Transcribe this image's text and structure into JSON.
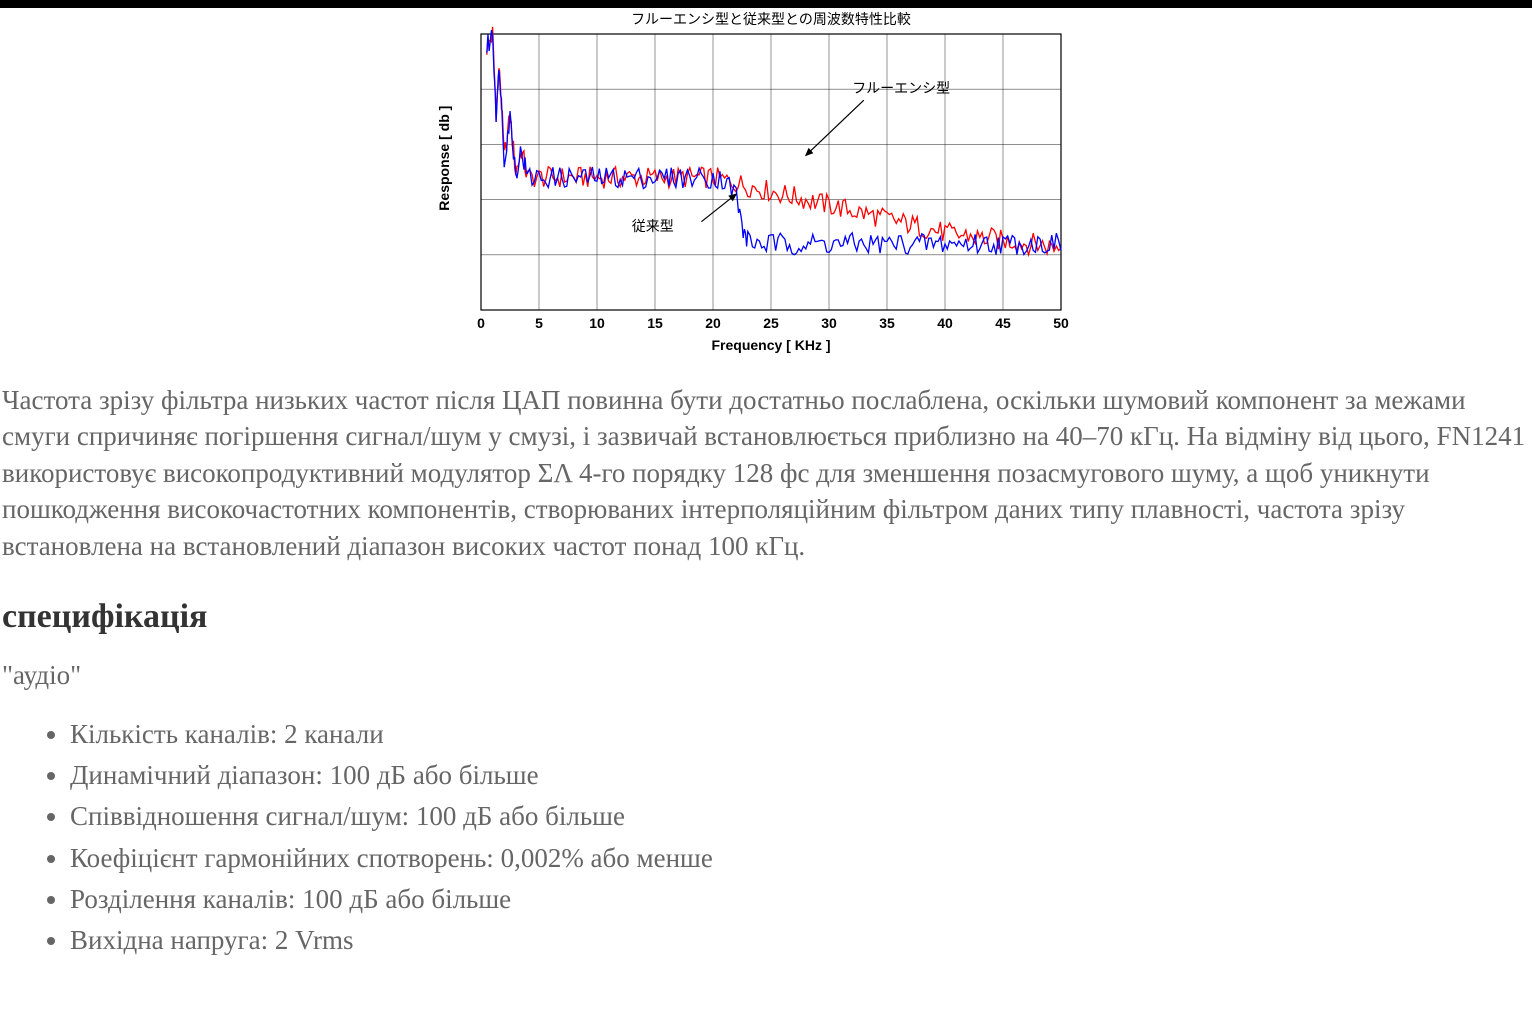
{
  "chart": {
    "type": "line",
    "title": "フルーエンシ型と従来型との周波数特性比較",
    "title_fontsize": 14,
    "xlabel": "Frequency [ KHz ]",
    "ylabel": "Response [ db ]",
    "label_fontsize": 14,
    "label_fontweight": "bold",
    "xlim": [
      0,
      50
    ],
    "ylim": [
      -100,
      0
    ],
    "xtick_step": 5,
    "xticks": [
      0,
      5,
      10,
      15,
      20,
      25,
      30,
      35,
      40,
      45,
      50
    ],
    "background_color": "#ffffff",
    "grid_color": "#000000",
    "grid_width": 0.6,
    "axis_color": "#000000",
    "axis_width": 1.2,
    "series": [
      {
        "name": "フルーエンシ型",
        "color": "#ff0000",
        "line_width": 1.3,
        "annotation_xy": [
          30,
          -38
        ],
        "arrow_from": [
          33,
          -24
        ],
        "arrow_to": [
          28,
          -44
        ],
        "data": [
          [
            0.5,
            -5
          ],
          [
            1,
            0
          ],
          [
            1.3,
            -28
          ],
          [
            1.6,
            -12
          ],
          [
            2,
            -45
          ],
          [
            2.5,
            -30
          ],
          [
            3,
            -50
          ],
          [
            3.5,
            -42
          ],
          [
            4,
            -52
          ],
          [
            5,
            -52
          ],
          [
            6,
            -52
          ],
          [
            7,
            -52
          ],
          [
            8,
            -52
          ],
          [
            9,
            -52
          ],
          [
            10,
            -52
          ],
          [
            11,
            -52
          ],
          [
            12,
            -52
          ],
          [
            13,
            -52
          ],
          [
            14,
            -52
          ],
          [
            15,
            -52
          ],
          [
            16,
            -52
          ],
          [
            17,
            -52
          ],
          [
            18,
            -52
          ],
          [
            19,
            -52
          ],
          [
            20,
            -52
          ],
          [
            21,
            -53
          ],
          [
            22,
            -54
          ],
          [
            23,
            -55
          ],
          [
            24,
            -56
          ],
          [
            25,
            -57
          ],
          [
            26,
            -58
          ],
          [
            27,
            -59
          ],
          [
            28,
            -60
          ],
          [
            29,
            -61
          ],
          [
            30,
            -62
          ],
          [
            31,
            -63
          ],
          [
            32,
            -64
          ],
          [
            33,
            -65
          ],
          [
            34,
            -66
          ],
          [
            35,
            -67
          ],
          [
            36,
            -68
          ],
          [
            37,
            -69
          ],
          [
            38,
            -70
          ],
          [
            39,
            -71
          ],
          [
            40,
            -72
          ],
          [
            41,
            -73
          ],
          [
            42,
            -73
          ],
          [
            43,
            -74
          ],
          [
            44,
            -74
          ],
          [
            45,
            -75
          ],
          [
            46,
            -75
          ],
          [
            47,
            -76
          ],
          [
            48,
            -76
          ],
          [
            49,
            -77
          ],
          [
            50,
            -77
          ]
        ]
      },
      {
        "name": "従来型",
        "color": "#0000ff",
        "line_width": 1.3,
        "annotation_xy": [
          16,
          -66
        ],
        "arrow_from": [
          19,
          -68
        ],
        "arrow_to": [
          22,
          -58
        ],
        "data": [
          [
            0.5,
            -5
          ],
          [
            1,
            0
          ],
          [
            1.3,
            -28
          ],
          [
            1.6,
            -12
          ],
          [
            2,
            -45
          ],
          [
            2.5,
            -30
          ],
          [
            3,
            -50
          ],
          [
            3.5,
            -42
          ],
          [
            4,
            -52
          ],
          [
            5,
            -52
          ],
          [
            6,
            -52
          ],
          [
            7,
            -52
          ],
          [
            8,
            -52
          ],
          [
            9,
            -52
          ],
          [
            10,
            -52
          ],
          [
            11,
            -52
          ],
          [
            12,
            -52
          ],
          [
            13,
            -52
          ],
          [
            14,
            -52
          ],
          [
            15,
            -52
          ],
          [
            16,
            -52
          ],
          [
            17,
            -52
          ],
          [
            18,
            -52
          ],
          [
            19,
            -52
          ],
          [
            20,
            -52
          ],
          [
            21,
            -53
          ],
          [
            22,
            -58
          ],
          [
            22.5,
            -70
          ],
          [
            23,
            -75
          ],
          [
            24,
            -76
          ],
          [
            25,
            -76
          ],
          [
            26,
            -76
          ],
          [
            27,
            -76
          ],
          [
            28,
            -76
          ],
          [
            29,
            -76
          ],
          [
            30,
            -76
          ],
          [
            31,
            -76
          ],
          [
            32,
            -76
          ],
          [
            33,
            -76
          ],
          [
            34,
            -76
          ],
          [
            35,
            -76
          ],
          [
            36,
            -76
          ],
          [
            37,
            -76
          ],
          [
            38,
            -76
          ],
          [
            39,
            -76
          ],
          [
            40,
            -76
          ],
          [
            41,
            -76
          ],
          [
            42,
            -76
          ],
          [
            43,
            -76
          ],
          [
            44,
            -76
          ],
          [
            45,
            -76
          ],
          [
            46,
            -76
          ],
          [
            47,
            -76
          ],
          [
            48,
            -76
          ],
          [
            49,
            -76
          ],
          [
            50,
            -76
          ]
        ]
      }
    ],
    "noise_amplitude": 4
  },
  "body_paragraph": "Частота зрізу фільтра низьких частот після ЦАП повинна бути достатньо послаблена, оскільки шумовий компонент за межами смуги спричиняє погіршення сигнал/шум у смузі, і зазвичай встановлюється приблизно на 40–70 кГц. На відміну від цього, FN1241 використовує високопродуктивний модулятор ΣΛ 4-го порядку 128 фс для зменшення позасмугового шуму, а щоб уникнути пошкодження високочастотних компонентів, створюваних інтерполяційним фільтром даних типу плавності, частота зрізу встановлена на встановлений діапазон високих частот понад 100 кГц.",
  "spec_heading": "специфікація",
  "audio_label": "\"аудіо\"",
  "spec_items": [
    "Кількість каналів: 2 канали",
    "Динамічний діапазон: 100 дБ або більше",
    "Співвідношення сигнал/шум: 100 дБ або більше",
    "Коефіцієнт гармонійних спотворень: 0,002% або менше",
    "Розділення каналів: 100 дБ або більше",
    "Вихідна напруга: 2 Vrms"
  ]
}
